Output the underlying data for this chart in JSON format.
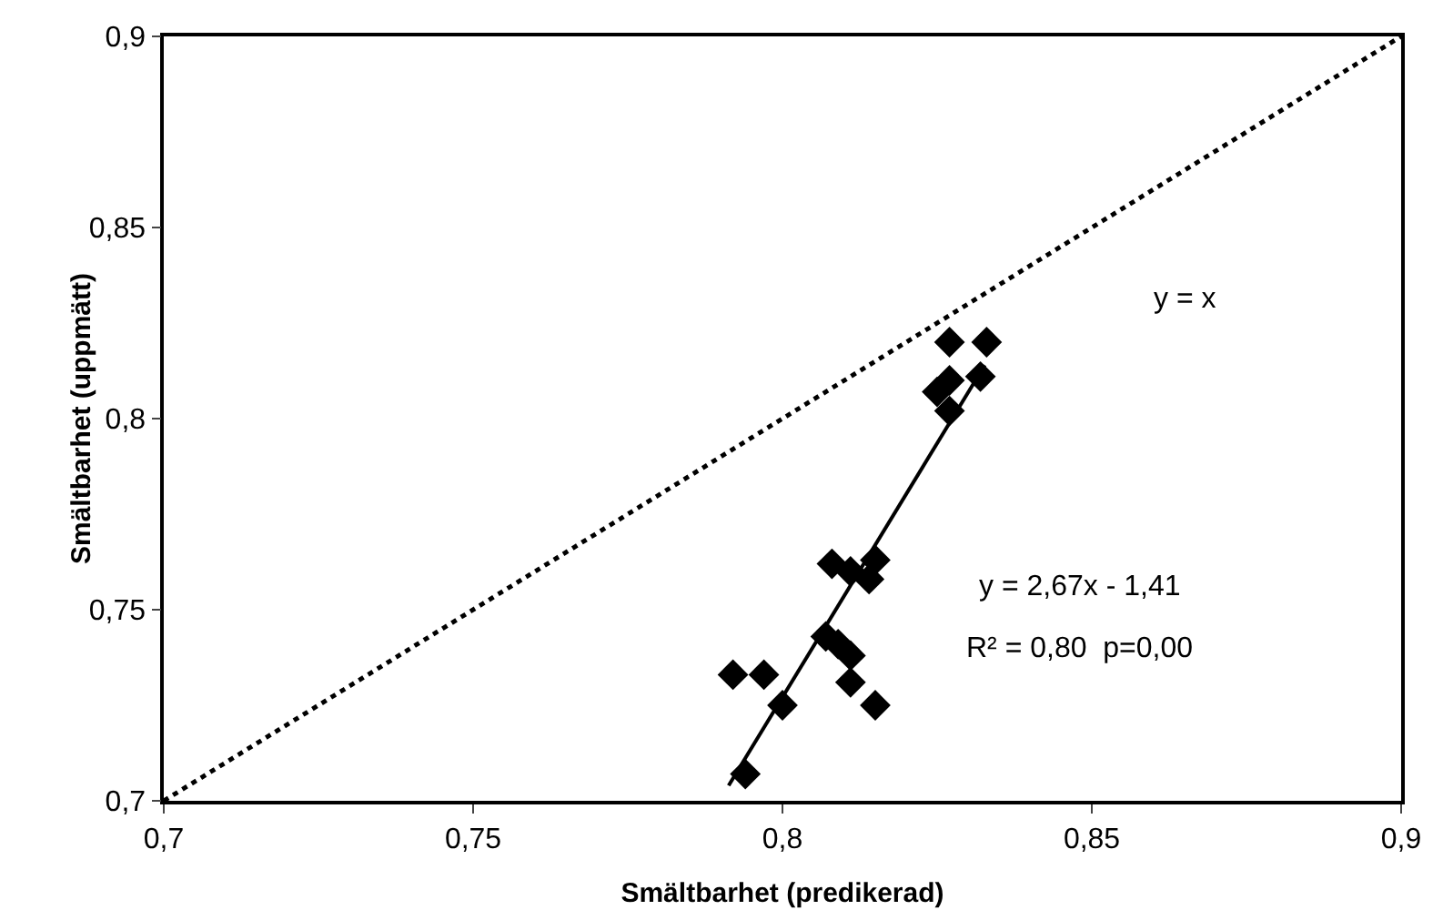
{
  "chart_data": {
    "type": "scatter",
    "xlabel": "Smältbarhet (predikerad)",
    "ylabel": "Smältbarhet (uppmätt)",
    "xlim": [
      0.7,
      0.9
    ],
    "ylim": [
      0.7,
      0.9
    ],
    "xticks": [
      {
        "value": 0.7,
        "label": "0,7"
      },
      {
        "value": 0.75,
        "label": "0,75"
      },
      {
        "value": 0.8,
        "label": "0,8"
      },
      {
        "value": 0.85,
        "label": "0,85"
      },
      {
        "value": 0.9,
        "label": "0,9"
      }
    ],
    "yticks": [
      {
        "value": 0.7,
        "label": "0,7"
      },
      {
        "value": 0.75,
        "label": "0,75"
      },
      {
        "value": 0.8,
        "label": "0,8"
      },
      {
        "value": 0.85,
        "label": "0,85"
      },
      {
        "value": 0.9,
        "label": "0,9"
      }
    ],
    "marker": "diamond",
    "series": [
      {
        "color": "#000000",
        "x": [
          0.792,
          0.797,
          0.8,
          0.794,
          0.808,
          0.811,
          0.814,
          0.815,
          0.807,
          0.809,
          0.811,
          0.811,
          0.815,
          0.827,
          0.833,
          0.825,
          0.827,
          0.827,
          0.832
        ],
        "values": [
          0.733,
          0.733,
          0.725,
          0.707,
          0.762,
          0.76,
          0.758,
          0.763,
          0.743,
          0.741,
          0.738,
          0.731,
          0.725,
          0.82,
          0.82,
          0.807,
          0.81,
          0.802,
          0.811
        ]
      },
      {
        "type": "line",
        "color": "#000000",
        "line_style": "solid",
        "marker": "none",
        "x": [
          0.7913,
          0.8327
        ],
        "values": [
          0.704,
          0.814
        ]
      },
      {
        "type": "line",
        "color": "#000000",
        "line_style": "dotted",
        "marker": "none",
        "x": [
          0.7,
          0.9
        ],
        "values": [
          0.7,
          0.9
        ]
      }
    ],
    "annotations": [
      "y = x",
      "y = 2,67x - 1,41",
      "R² = 0,80  p=0,00"
    ]
  }
}
